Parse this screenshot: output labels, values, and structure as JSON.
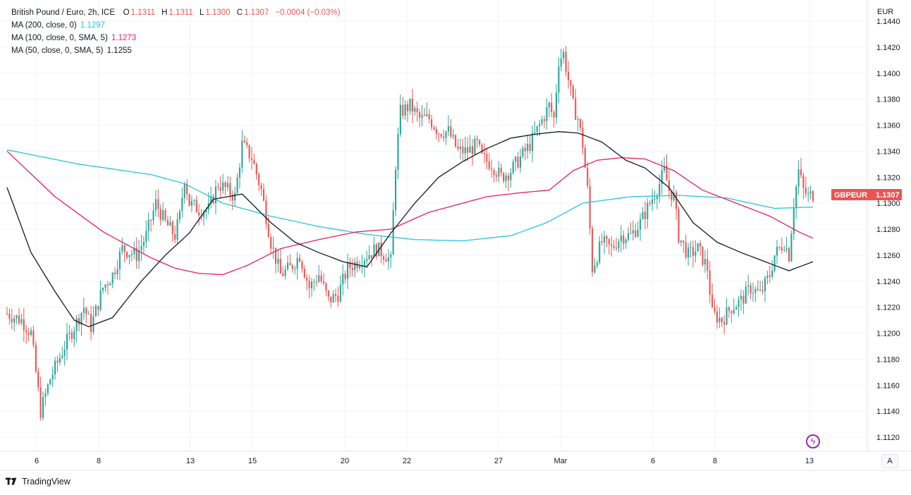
{
  "legend": {
    "symbol": "British Pound / Euro, 2h, ICE",
    "o_label": "O",
    "o_value": "1.1311",
    "h_label": "H",
    "h_value": "1.1311",
    "l_label": "L",
    "l_value": "1.1300",
    "c_label": "C",
    "c_value": "1.1307",
    "change": "−0.0004 (−0.03%)",
    "ma200_label": "MA (200, close, 0)",
    "ma200_value": "1.1297",
    "ma100_label": "MA (100, close, 0, SMA, 5)",
    "ma100_value": "1.1273",
    "ma50_label": "MA (50, close, 0, SMA, 5)",
    "ma50_value": "1.1255"
  },
  "currency_label": "EUR",
  "price_tag": {
    "symbol": "GBPEUR",
    "value": "1.1307"
  },
  "scale_button": "A",
  "branding": "TradingView",
  "colors": {
    "up": "#26a69a",
    "down": "#ef5350",
    "ma200": "#26c6da",
    "ma100": "#e91e63",
    "ma50": "#131722",
    "grid": "#f0f3fa"
  },
  "icons": {
    "flash": "lightning-bolt-icon",
    "logo": "tradingview-logo-icon"
  },
  "chart_data": {
    "type": "candlestick",
    "y_ticks": [
      "1.1440",
      "1.1420",
      "1.1400",
      "1.1380",
      "1.1360",
      "1.1340",
      "1.1320",
      "1.1300",
      "1.1280",
      "1.1260",
      "1.1240",
      "1.1220",
      "1.1200",
      "1.1180",
      "1.1160",
      "1.1140",
      "1.1120"
    ],
    "x_ticks": [
      "6",
      "8",
      "13",
      "15",
      "20",
      "22",
      "27",
      "Mar",
      "6",
      "8",
      "13"
    ],
    "ylim": [
      1.1112,
      1.1446
    ],
    "grid": true,
    "price_path": [
      [
        0,
        1.1215
      ],
      [
        6,
        1.121
      ],
      [
        10,
        1.12
      ],
      [
        14,
        1.114
      ],
      [
        18,
        1.1165
      ],
      [
        24,
        1.119
      ],
      [
        28,
        1.1205
      ],
      [
        32,
        1.122
      ],
      [
        35,
        1.1205
      ],
      [
        40,
        1.1235
      ],
      [
        44,
        1.1245
      ],
      [
        48,
        1.1265
      ],
      [
        54,
        1.126
      ],
      [
        58,
        1.1275
      ],
      [
        62,
        1.13
      ],
      [
        66,
        1.1285
      ],
      [
        70,
        1.1275
      ],
      [
        72,
        1.129
      ],
      [
        74,
        1.132
      ],
      [
        76,
        1.13
      ],
      [
        80,
        1.1295
      ],
      [
        84,
        1.1295
      ],
      [
        88,
        1.1315
      ],
      [
        92,
        1.131
      ],
      [
        95,
        1.1305
      ],
      [
        98,
        1.1345
      ],
      [
        102,
        1.1335
      ],
      [
        106,
        1.131
      ],
      [
        110,
        1.127
      ],
      [
        114,
        1.1245
      ],
      [
        118,
        1.125
      ],
      [
        122,
        1.126
      ],
      [
        126,
        1.1235
      ],
      [
        130,
        1.1245
      ],
      [
        134,
        1.1225
      ],
      [
        138,
        1.123
      ],
      [
        142,
        1.125
      ],
      [
        146,
        1.1255
      ],
      [
        150,
        1.126
      ],
      [
        154,
        1.1265
      ],
      [
        158,
        1.126
      ],
      [
        160,
        1.1255
      ],
      [
        162,
        1.133
      ],
      [
        164,
        1.137
      ],
      [
        168,
        1.1375
      ],
      [
        172,
        1.1365
      ],
      [
        176,
        1.1365
      ],
      [
        180,
        1.1355
      ],
      [
        184,
        1.1355
      ],
      [
        188,
        1.134
      ],
      [
        192,
        1.134
      ],
      [
        196,
        1.1345
      ],
      [
        198,
        1.1335
      ],
      [
        202,
        1.133
      ],
      [
        206,
        1.132
      ],
      [
        210,
        1.1325
      ],
      [
        214,
        1.1335
      ],
      [
        218,
        1.1345
      ],
      [
        222,
        1.136
      ],
      [
        226,
        1.1375
      ],
      [
        228,
        1.1365
      ],
      [
        230,
        1.141
      ],
      [
        232,
        1.1415
      ],
      [
        234,
        1.1395
      ],
      [
        236,
        1.1375
      ],
      [
        238,
        1.1365
      ],
      [
        240,
        1.1345
      ],
      [
        242,
        1.131
      ],
      [
        244,
        1.125
      ],
      [
        248,
        1.127
      ],
      [
        252,
        1.1265
      ],
      [
        256,
        1.1275
      ],
      [
        260,
        1.1275
      ],
      [
        264,
        1.1285
      ],
      [
        268,
        1.13
      ],
      [
        272,
        1.1315
      ],
      [
        274,
        1.1325
      ],
      [
        276,
        1.131
      ],
      [
        278,
        1.1305
      ],
      [
        280,
        1.1275
      ],
      [
        284,
        1.126
      ],
      [
        288,
        1.1265
      ],
      [
        292,
        1.125
      ],
      [
        294,
        1.1215
      ],
      [
        298,
        1.121
      ],
      [
        302,
        1.122
      ],
      [
        306,
        1.1225
      ],
      [
        310,
        1.1235
      ],
      [
        314,
        1.123
      ],
      [
        318,
        1.1245
      ],
      [
        320,
        1.126
      ],
      [
        324,
        1.127
      ],
      [
        326,
        1.126
      ],
      [
        328,
        1.13
      ],
      [
        330,
        1.1325
      ],
      [
        332,
        1.131
      ],
      [
        334,
        1.1305
      ],
      [
        336,
        1.1307
      ]
    ],
    "ma200": [
      [
        0,
        1.1341
      ],
      [
        30,
        1.133
      ],
      [
        60,
        1.1322
      ],
      [
        74,
        1.1315
      ],
      [
        90,
        1.13
      ],
      [
        110,
        1.129
      ],
      [
        130,
        1.1282
      ],
      [
        150,
        1.1276
      ],
      [
        170,
        1.1272
      ],
      [
        190,
        1.1271
      ],
      [
        210,
        1.1275
      ],
      [
        225,
        1.1285
      ],
      [
        240,
        1.13
      ],
      [
        260,
        1.1305
      ],
      [
        280,
        1.1306
      ],
      [
        300,
        1.1304
      ],
      [
        320,
        1.1296
      ],
      [
        336,
        1.1297
      ]
    ],
    "ma100": [
      [
        0,
        1.134
      ],
      [
        20,
        1.1305
      ],
      [
        40,
        1.1278
      ],
      [
        60,
        1.1258
      ],
      [
        70,
        1.125
      ],
      [
        80,
        1.1246
      ],
      [
        90,
        1.1245
      ],
      [
        100,
        1.1252
      ],
      [
        114,
        1.1265
      ],
      [
        130,
        1.1272
      ],
      [
        146,
        1.1278
      ],
      [
        160,
        1.128
      ],
      [
        176,
        1.1293
      ],
      [
        190,
        1.13
      ],
      [
        200,
        1.1305
      ],
      [
        214,
        1.1308
      ],
      [
        226,
        1.131
      ],
      [
        236,
        1.1325
      ],
      [
        246,
        1.1333
      ],
      [
        256,
        1.1335
      ],
      [
        266,
        1.1334
      ],
      [
        278,
        1.1325
      ],
      [
        290,
        1.131
      ],
      [
        304,
        1.13
      ],
      [
        318,
        1.129
      ],
      [
        330,
        1.1278
      ],
      [
        336,
        1.1273
      ]
    ],
    "ma50": [
      [
        0,
        1.1312
      ],
      [
        10,
        1.1262
      ],
      [
        20,
        1.1232
      ],
      [
        28,
        1.121
      ],
      [
        34,
        1.1205
      ],
      [
        44,
        1.1212
      ],
      [
        56,
        1.124
      ],
      [
        66,
        1.126
      ],
      [
        76,
        1.1277
      ],
      [
        86,
        1.1303
      ],
      [
        98,
        1.1307
      ],
      [
        110,
        1.1285
      ],
      [
        120,
        1.127
      ],
      [
        130,
        1.1262
      ],
      [
        140,
        1.1255
      ],
      [
        150,
        1.1251
      ],
      [
        160,
        1.1277
      ],
      [
        170,
        1.13
      ],
      [
        180,
        1.132
      ],
      [
        190,
        1.1332
      ],
      [
        200,
        1.1342
      ],
      [
        210,
        1.135
      ],
      [
        220,
        1.1353
      ],
      [
        230,
        1.1355
      ],
      [
        238,
        1.1354
      ],
      [
        248,
        1.1347
      ],
      [
        258,
        1.1333
      ],
      [
        266,
        1.1327
      ],
      [
        276,
        1.1312
      ],
      [
        286,
        1.1285
      ],
      [
        296,
        1.127
      ],
      [
        306,
        1.1262
      ],
      [
        316,
        1.1255
      ],
      [
        326,
        1.1248
      ],
      [
        336,
        1.1255
      ]
    ]
  }
}
